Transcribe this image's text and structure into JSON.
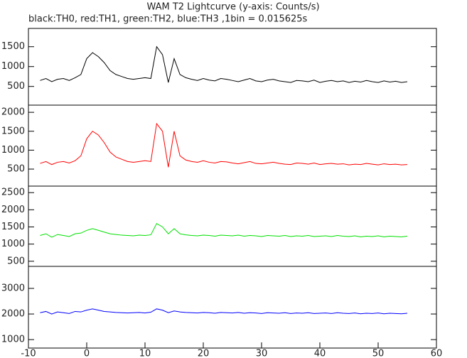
{
  "title": "WAM T2 Lightcurve (y-axis: Counts/s)",
  "subtitle": "black:TH0, red:TH1, green:TH2, blue:TH3 ,1bin = 0.015625s",
  "chart_data": [
    {
      "type": "line",
      "xlim": [
        -10,
        60
      ],
      "ylim": [
        30,
        1960
      ],
      "yticks": [
        500,
        1000,
        1500
      ],
      "series": [
        {
          "name": "TH0",
          "color": "#000000",
          "x": [
            -8,
            -7,
            -6,
            -5,
            -4,
            -3,
            -2,
            -1,
            0,
            1,
            2,
            3,
            4,
            5,
            6,
            7,
            8,
            9,
            10,
            11,
            12,
            13,
            14,
            15,
            16,
            17,
            18,
            19,
            20,
            21,
            22,
            23,
            24,
            25,
            26,
            27,
            28,
            29,
            30,
            31,
            32,
            33,
            34,
            35,
            36,
            37,
            38,
            39,
            40,
            41,
            42,
            43,
            44,
            45,
            46,
            47,
            48,
            49,
            50,
            51,
            52,
            53,
            54,
            55
          ],
          "values": [
            650,
            700,
            620,
            680,
            700,
            650,
            720,
            800,
            1200,
            1350,
            1250,
            1100,
            900,
            800,
            750,
            700,
            680,
            700,
            720,
            700,
            1500,
            1300,
            600,
            1200,
            800,
            720,
            680,
            650,
            700,
            660,
            640,
            700,
            680,
            650,
            620,
            660,
            700,
            640,
            620,
            660,
            680,
            640,
            620,
            600,
            650,
            640,
            620,
            660,
            600,
            630,
            650,
            620,
            640,
            600,
            630,
            610,
            650,
            620,
            600,
            640,
            610,
            630,
            600,
            620
          ]
        }
      ]
    },
    {
      "type": "line",
      "xlim": [
        -10,
        60
      ],
      "ylim": [
        50,
        2190
      ],
      "yticks": [
        500,
        1000,
        1500,
        2000
      ],
      "series": [
        {
          "name": "TH1",
          "color": "#ff0000",
          "x": [
            -8,
            -7,
            -6,
            -5,
            -4,
            -3,
            -2,
            -1,
            0,
            1,
            2,
            3,
            4,
            5,
            6,
            7,
            8,
            9,
            10,
            11,
            12,
            13,
            14,
            15,
            16,
            17,
            18,
            19,
            20,
            21,
            22,
            23,
            24,
            25,
            26,
            27,
            28,
            29,
            30,
            31,
            32,
            33,
            34,
            35,
            36,
            37,
            38,
            39,
            40,
            41,
            42,
            43,
            44,
            45,
            46,
            47,
            48,
            49,
            50,
            51,
            52,
            53,
            54,
            55
          ],
          "values": [
            650,
            700,
            620,
            680,
            700,
            660,
            720,
            850,
            1300,
            1500,
            1400,
            1200,
            950,
            820,
            760,
            700,
            680,
            700,
            720,
            700,
            1700,
            1500,
            550,
            1500,
            850,
            740,
            700,
            680,
            720,
            680,
            660,
            700,
            690,
            660,
            640,
            670,
            700,
            650,
            640,
            660,
            680,
            650,
            630,
            620,
            660,
            650,
            630,
            660,
            620,
            640,
            650,
            630,
            640,
            610,
            630,
            620,
            650,
            630,
            610,
            640,
            620,
            630,
            610,
            620
          ]
        }
      ]
    },
    {
      "type": "line",
      "xlim": [
        -10,
        60
      ],
      "ylim": [
        350,
        2690
      ],
      "yticks": [
        500,
        1000,
        1500,
        2000,
        2500
      ],
      "series": [
        {
          "name": "TH2",
          "color": "#00e000",
          "x": [
            -8,
            -7,
            -6,
            -5,
            -4,
            -3,
            -2,
            -1,
            0,
            1,
            2,
            3,
            4,
            5,
            6,
            7,
            8,
            9,
            10,
            11,
            12,
            13,
            14,
            15,
            16,
            17,
            18,
            19,
            20,
            21,
            22,
            23,
            24,
            25,
            26,
            27,
            28,
            29,
            30,
            31,
            32,
            33,
            34,
            35,
            36,
            37,
            38,
            39,
            40,
            41,
            42,
            43,
            44,
            45,
            46,
            47,
            48,
            49,
            50,
            51,
            52,
            53,
            54,
            55
          ],
          "values": [
            1250,
            1300,
            1200,
            1280,
            1250,
            1220,
            1300,
            1320,
            1400,
            1450,
            1400,
            1350,
            1300,
            1280,
            1260,
            1250,
            1240,
            1260,
            1250,
            1270,
            1600,
            1500,
            1300,
            1450,
            1300,
            1270,
            1250,
            1240,
            1260,
            1250,
            1230,
            1260,
            1250,
            1240,
            1260,
            1230,
            1250,
            1240,
            1220,
            1250,
            1240,
            1230,
            1250,
            1220,
            1240,
            1230,
            1250,
            1220,
            1230,
            1240,
            1220,
            1250,
            1230,
            1220,
            1240,
            1210,
            1230,
            1220,
            1240,
            1210,
            1230,
            1220,
            1210,
            1230
          ]
        }
      ]
    },
    {
      "type": "line",
      "xlim": [
        -10,
        60
      ],
      "ylim": [
        670,
        3860
      ],
      "yticks": [
        1000,
        2000,
        3000
      ],
      "xticks": [
        -10,
        0,
        10,
        20,
        30,
        40,
        50,
        60
      ],
      "series": [
        {
          "name": "TH3",
          "color": "#0000ff",
          "x": [
            -8,
            -7,
            -6,
            -5,
            -4,
            -3,
            -2,
            -1,
            0,
            1,
            2,
            3,
            4,
            5,
            6,
            7,
            8,
            9,
            10,
            11,
            12,
            13,
            14,
            15,
            16,
            17,
            18,
            19,
            20,
            21,
            22,
            23,
            24,
            25,
            26,
            27,
            28,
            29,
            30,
            31,
            32,
            33,
            34,
            35,
            36,
            37,
            38,
            39,
            40,
            41,
            42,
            43,
            44,
            45,
            46,
            47,
            48,
            49,
            50,
            51,
            52,
            53,
            54,
            55
          ],
          "values": [
            2050,
            2100,
            2000,
            2080,
            2050,
            2020,
            2100,
            2080,
            2150,
            2200,
            2150,
            2100,
            2080,
            2060,
            2050,
            2040,
            2050,
            2060,
            2040,
            2070,
            2200,
            2150,
            2050,
            2120,
            2080,
            2060,
            2050,
            2040,
            2060,
            2050,
            2030,
            2060,
            2050,
            2040,
            2060,
            2030,
            2050,
            2040,
            2020,
            2050,
            2040,
            2030,
            2050,
            2020,
            2040,
            2030,
            2050,
            2020,
            2030,
            2040,
            2020,
            2050,
            2030,
            2020,
            2040,
            2010,
            2030,
            2020,
            2040,
            2010,
            2030,
            2020,
            2010,
            2030
          ]
        }
      ]
    }
  ]
}
